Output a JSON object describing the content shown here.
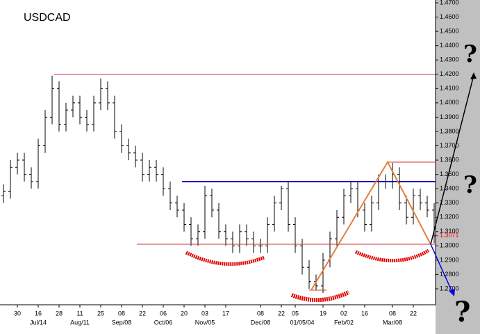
{
  "chart_data": {
    "type": "ohlc",
    "title": "USDCAD",
    "categories": [
      null,
      null,
      "30",
      null,
      null,
      "16",
      null,
      null,
      "28",
      null,
      null,
      "11",
      null,
      null,
      "25",
      null,
      null,
      "08",
      null,
      null,
      "22",
      null,
      null,
      "06",
      null,
      null,
      "20",
      null,
      null,
      "03",
      null,
      null,
      "17",
      null,
      null,
      null,
      null,
      "08",
      null,
      null,
      "22",
      null,
      "05",
      null,
      null,
      null,
      "19",
      null,
      null,
      "02",
      null,
      null,
      "16",
      null,
      null,
      null,
      "08",
      null,
      null,
      "22",
      null,
      null,
      null
    ],
    "month_labels": [
      null,
      null,
      null,
      null,
      null,
      "Jul/14",
      null,
      null,
      null,
      null,
      null,
      "Aug/11",
      null,
      null,
      null,
      null,
      null,
      "Sep/08",
      null,
      null,
      null,
      null,
      null,
      "Oct/06",
      null,
      null,
      null,
      null,
      null,
      "Nov/05",
      null,
      null,
      null,
      null,
      null,
      null,
      null,
      "Dec/08",
      null,
      null,
      null,
      null,
      null,
      "01/05/04",
      null,
      null,
      null,
      null,
      null,
      "Feb/02",
      null,
      null,
      null,
      null,
      null,
      null,
      "Mar/08",
      null,
      null,
      null,
      null,
      null,
      null
    ],
    "open": [
      1.335,
      1.338,
      1.355,
      1.36,
      1.35,
      1.345,
      1.37,
      1.39,
      1.41,
      1.385,
      1.395,
      1.4,
      1.39,
      1.385,
      1.4,
      1.41,
      1.4,
      1.38,
      1.37,
      1.365,
      1.36,
      1.35,
      1.355,
      1.35,
      1.34,
      1.33,
      1.325,
      1.315,
      1.305,
      1.31,
      1.335,
      1.325,
      1.31,
      1.305,
      1.3,
      1.31,
      1.305,
      1.3,
      1.3,
      1.315,
      1.33,
      1.34,
      1.315,
      1.3,
      1.285,
      1.275,
      1.272,
      1.29,
      1.305,
      1.32,
      1.335,
      1.34,
      1.325,
      1.315,
      1.33,
      1.345,
      1.345,
      1.35,
      1.33,
      1.32,
      1.335,
      1.33,
      1.325
    ],
    "high": [
      1.343,
      1.36,
      1.365,
      1.365,
      1.355,
      1.375,
      1.395,
      1.419,
      1.415,
      1.4,
      1.405,
      1.405,
      1.395,
      1.405,
      1.417,
      1.415,
      1.405,
      1.385,
      1.375,
      1.37,
      1.365,
      1.36,
      1.36,
      1.355,
      1.345,
      1.335,
      1.33,
      1.32,
      1.315,
      1.342,
      1.34,
      1.33,
      1.315,
      1.31,
      1.315,
      1.315,
      1.31,
      1.305,
      1.32,
      1.335,
      1.342,
      1.345,
      1.32,
      1.305,
      1.29,
      1.28,
      1.295,
      1.31,
      1.325,
      1.34,
      1.345,
      1.345,
      1.33,
      1.335,
      1.35,
      1.35,
      1.358,
      1.355,
      1.335,
      1.34,
      1.34,
      1.335,
      1.33
    ],
    "low": [
      1.33,
      1.333,
      1.35,
      1.345,
      1.34,
      1.34,
      1.365,
      1.385,
      1.38,
      1.38,
      1.39,
      1.385,
      1.38,
      1.38,
      1.395,
      1.395,
      1.375,
      1.365,
      1.36,
      1.355,
      1.345,
      1.345,
      1.345,
      1.335,
      1.325,
      1.32,
      1.31,
      1.3,
      1.3,
      1.305,
      1.32,
      1.305,
      1.3,
      1.295,
      1.295,
      1.3,
      1.295,
      1.295,
      1.295,
      1.31,
      1.325,
      1.31,
      1.295,
      1.28,
      1.27,
      1.269,
      1.267,
      1.285,
      1.3,
      1.315,
      1.33,
      1.32,
      1.31,
      1.31,
      1.325,
      1.34,
      1.34,
      1.325,
      1.315,
      1.315,
      1.325,
      1.32,
      1.302
    ],
    "close": [
      1.338,
      1.355,
      1.36,
      1.35,
      1.345,
      1.37,
      1.39,
      1.41,
      1.385,
      1.395,
      1.4,
      1.39,
      1.385,
      1.4,
      1.41,
      1.4,
      1.38,
      1.37,
      1.365,
      1.36,
      1.35,
      1.355,
      1.35,
      1.34,
      1.33,
      1.325,
      1.315,
      1.305,
      1.31,
      1.335,
      1.325,
      1.31,
      1.305,
      1.3,
      1.31,
      1.305,
      1.3,
      1.3,
      1.315,
      1.33,
      1.34,
      1.315,
      1.3,
      1.285,
      1.275,
      1.272,
      1.29,
      1.305,
      1.32,
      1.335,
      1.34,
      1.325,
      1.315,
      1.33,
      1.345,
      1.345,
      1.35,
      1.33,
      1.32,
      1.335,
      1.33,
      1.325,
      1.307
    ],
    "color": "#000000",
    "ylim": [
      1.27,
      1.47
    ],
    "yticks": [
      {
        "value": 1.27,
        "label": "1.2700"
      },
      {
        "value": 1.28,
        "label": "1.2800"
      },
      {
        "value": 1.29,
        "label": "1.2900"
      },
      {
        "value": 1.3,
        "label": "1.3000"
      },
      {
        "value": 1.31,
        "label": "1.3100"
      },
      {
        "value": 1.32,
        "label": "1.3200"
      },
      {
        "value": 1.33,
        "label": "1.3300"
      },
      {
        "value": 1.34,
        "label": "1.3400"
      },
      {
        "value": 1.35,
        "label": "1.3500"
      },
      {
        "value": 1.36,
        "label": "1.3600"
      },
      {
        "value": 1.37,
        "label": "1.3700"
      },
      {
        "value": 1.38,
        "label": "1.3800"
      },
      {
        "value": 1.39,
        "label": "1.3900"
      },
      {
        "value": 1.4,
        "label": "1.4000"
      },
      {
        "value": 1.41,
        "label": "1.4100"
      },
      {
        "value": 1.42,
        "label": "1.4200"
      },
      {
        "value": 1.43,
        "label": "1.4300"
      },
      {
        "value": 1.44,
        "label": "1.4400"
      },
      {
        "value": 1.45,
        "label": "1.4500"
      },
      {
        "value": 1.46,
        "label": "1.4600"
      },
      {
        "value": 1.47,
        "label": "1.4700"
      }
    ],
    "last_price": {
      "value": 1.3071,
      "label": "1.3071",
      "color": "#ff0000"
    },
    "grid": false
  }
}
